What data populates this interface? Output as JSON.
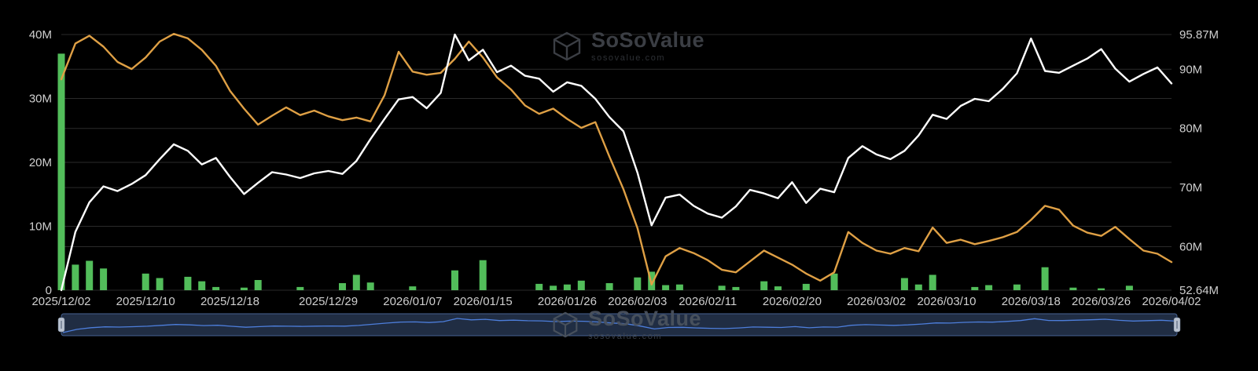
{
  "watermark": {
    "title": "SoSoValue",
    "subtitle": "sosovalue.com"
  },
  "colors": {
    "background": "#000000",
    "grid": "#2a2a2a",
    "axis_text": "#cfcfcf",
    "green": "#52bd5a",
    "orange": "#dfa045",
    "white": "#ffffff"
  },
  "chart_data": {
    "type": "mixed",
    "title": "",
    "grid": true,
    "legend_position": "none",
    "left_axis": {
      "min": 0,
      "max": 40,
      "ticks": [
        {
          "label": "0",
          "value": 0
        },
        {
          "label": "10M",
          "value": 10
        },
        {
          "label": "20M",
          "value": 20
        },
        {
          "label": "30M",
          "value": 30
        },
        {
          "label": "40M",
          "value": 40
        }
      ]
    },
    "right_axis": {
      "min": 52.64,
      "max": 95.87,
      "ticks": [
        {
          "label": "52.64M",
          "value": 52.64
        },
        {
          "label": "60M",
          "value": 60
        },
        {
          "label": "70M",
          "value": 70
        },
        {
          "label": "80M",
          "value": 80
        },
        {
          "label": "90M",
          "value": 90
        },
        {
          "label": "95.87M",
          "value": 95.87
        }
      ]
    },
    "x_tick_labels": [
      {
        "label": "2025/12/02",
        "index": 0
      },
      {
        "label": "2025/12/10",
        "index": 6
      },
      {
        "label": "2025/12/18",
        "index": 12
      },
      {
        "label": "2025/12/29",
        "index": 19
      },
      {
        "label": "2026/01/07",
        "index": 25
      },
      {
        "label": "2026/01/15",
        "index": 30
      },
      {
        "label": "2026/01/26",
        "index": 36
      },
      {
        "label": "2026/02/03",
        "index": 41
      },
      {
        "label": "2026/02/11",
        "index": 46
      },
      {
        "label": "2026/02/20",
        "index": 52
      },
      {
        "label": "2026/03/02",
        "index": 58
      },
      {
        "label": "2026/03/10",
        "index": 63
      },
      {
        "label": "2026/03/18",
        "index": 69
      },
      {
        "label": "2026/03/26",
        "index": 74
      },
      {
        "label": "2026/04/02",
        "index": 79
      }
    ],
    "series": [
      {
        "name": "green-bars",
        "type": "bar",
        "axis": "left",
        "color": "#52bd5a",
        "values": [
          37.0,
          4.0,
          4.6,
          3.4,
          0,
          0,
          2.6,
          1.9,
          0,
          2.1,
          1.4,
          0.5,
          0,
          0.4,
          1.6,
          0,
          0,
          0.5,
          0,
          0,
          1.1,
          2.4,
          1.2,
          0,
          0,
          0.6,
          0,
          0,
          3.1,
          0,
          4.7,
          0,
          0,
          0,
          1.0,
          0.7,
          0.9,
          1.5,
          0,
          1.1,
          0,
          2.0,
          2.9,
          0.8,
          0.9,
          0,
          0,
          0.7,
          0.5,
          0,
          1.4,
          0.6,
          0,
          1.0,
          0,
          2.6,
          0,
          0,
          0,
          0,
          1.9,
          0.9,
          2.4,
          0,
          0,
          0.5,
          0.8,
          0,
          0.9,
          0,
          3.6,
          0,
          0.4,
          0,
          0.3,
          0,
          0.7,
          0,
          0,
          0
        ]
      },
      {
        "name": "orange-line",
        "type": "line",
        "axis": "left",
        "color": "#dfa045",
        "values": [
          33.0,
          38.6,
          39.8,
          38.1,
          35.7,
          34.6,
          36.4,
          38.9,
          40.1,
          39.4,
          37.6,
          35.1,
          31.2,
          28.4,
          25.9,
          27.3,
          28.6,
          27.4,
          28.1,
          27.2,
          26.6,
          27.0,
          26.4,
          30.5,
          37.3,
          34.2,
          33.7,
          34.0,
          36.2,
          38.9,
          36.4,
          33.3,
          31.4,
          28.9,
          27.6,
          28.4,
          26.8,
          25.4,
          26.3,
          20.9,
          15.8,
          9.7,
          0.9,
          5.3,
          6.6,
          5.8,
          4.7,
          3.2,
          2.8,
          4.5,
          6.2,
          5.1,
          4.0,
          2.6,
          1.5,
          2.8,
          9.1,
          7.4,
          6.2,
          5.7,
          6.6,
          6.1,
          9.8,
          7.4,
          7.9,
          7.2,
          7.7,
          8.3,
          9.1,
          11.0,
          13.2,
          12.6,
          10.1,
          9.0,
          8.5,
          9.9,
          8.0,
          6.2,
          5.7,
          4.4
        ]
      },
      {
        "name": "white-line",
        "type": "line",
        "axis": "right",
        "color": "#ffffff",
        "values": [
          52.64,
          62.5,
          67.5,
          70.2,
          69.4,
          70.6,
          72.1,
          74.8,
          77.3,
          76.2,
          73.9,
          75.0,
          71.8,
          68.9,
          70.8,
          72.6,
          72.2,
          71.6,
          72.4,
          72.8,
          72.3,
          74.5,
          78.2,
          81.6,
          84.9,
          85.3,
          83.4,
          86.0,
          95.87,
          91.5,
          93.3,
          89.5,
          90.6,
          88.9,
          88.4,
          86.2,
          87.8,
          87.2,
          85.0,
          81.9,
          79.5,
          72.5,
          63.6,
          68.3,
          68.8,
          66.9,
          65.6,
          64.9,
          66.8,
          69.6,
          69.0,
          68.2,
          70.9,
          67.4,
          69.8,
          69.2,
          75.0,
          77.0,
          75.6,
          74.8,
          76.2,
          78.8,
          82.3,
          81.6,
          83.8,
          85.0,
          84.6,
          86.7,
          89.3,
          95.2,
          89.7,
          89.4,
          90.6,
          91.8,
          93.4,
          90.1,
          87.9,
          89.2,
          90.3,
          87.6
        ]
      }
    ],
    "navigator": {
      "track_color": "#161f2c",
      "selection_fill": "rgba(76,110,170,0.18)",
      "border_color": "#46618f",
      "line_color": "#4d7edb",
      "handle_color": "#b9c2d0",
      "source_series": 2
    }
  }
}
